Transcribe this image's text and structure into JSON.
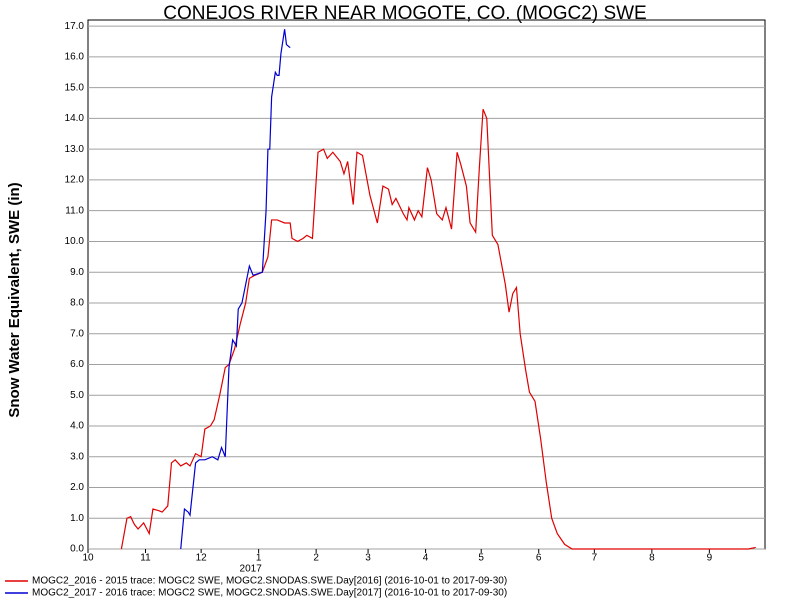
{
  "chart_data": {
    "type": "line",
    "title": "CONEJOS RIVER NEAR MOGOTE, CO. (MOGC2) SWE",
    "y_label": "Snow Water Equivalent, SWE (in)",
    "annotation": "2017",
    "xlim": [
      0,
      365
    ],
    "xticks": [
      {
        "value": 0,
        "label": "10"
      },
      {
        "value": 31,
        "label": "11"
      },
      {
        "value": 61,
        "label": "12"
      },
      {
        "value": 92,
        "label": "1"
      },
      {
        "value": 123,
        "label": "2"
      },
      {
        "value": 151,
        "label": "3"
      },
      {
        "value": 182,
        "label": "4"
      },
      {
        "value": 212,
        "label": "5"
      },
      {
        "value": 243,
        "label": "6"
      },
      {
        "value": 273,
        "label": "7"
      },
      {
        "value": 304,
        "label": "8"
      },
      {
        "value": 335,
        "label": "9"
      }
    ],
    "ylim": [
      0,
      17.2
    ],
    "yticks": [
      {
        "value": 0,
        "label": "0.0"
      },
      {
        "value": 1,
        "label": "1.0"
      },
      {
        "value": 2,
        "label": "2.0"
      },
      {
        "value": 3,
        "label": "3.0"
      },
      {
        "value": 4,
        "label": "4.0"
      },
      {
        "value": 5,
        "label": "5.0"
      },
      {
        "value": 6,
        "label": "6.0"
      },
      {
        "value": 7,
        "label": "7.0"
      },
      {
        "value": 8,
        "label": "8.0"
      },
      {
        "value": 9,
        "label": "9.0"
      },
      {
        "value": 10,
        "label": "10.0"
      },
      {
        "value": 11,
        "label": "11.0"
      },
      {
        "value": 12,
        "label": "12.0"
      },
      {
        "value": 13,
        "label": "13.0"
      },
      {
        "value": 14,
        "label": "14.0"
      },
      {
        "value": 15,
        "label": "15.0"
      },
      {
        "value": 16,
        "label": "16.0"
      },
      {
        "value": 17,
        "label": "17.0"
      }
    ],
    "grid": true,
    "series": [
      {
        "name": "MOGC2_2016 - 2015 trace: MOGC2 SWE, MOGC2.SNODAS.SWE.Day[2016] (2016-10-01 to 2017-09-30)",
        "color": "#e00000",
        "x": [
          18,
          21,
          23,
          25,
          27,
          30,
          33,
          35,
          38,
          40,
          43,
          45,
          47,
          50,
          53,
          55,
          58,
          61,
          63,
          66,
          68,
          71,
          74,
          76,
          79,
          82,
          85,
          87,
          90,
          94,
          97,
          99,
          102,
          106,
          109,
          110,
          113,
          116,
          118,
          121,
          124,
          127,
          129,
          132,
          136,
          138,
          140,
          143,
          145,
          148,
          152,
          156,
          159,
          162,
          164,
          166,
          170,
          172,
          173,
          176,
          178,
          180,
          183,
          185,
          188,
          191,
          193,
          196,
          199,
          201,
          204,
          206,
          209,
          211,
          213,
          215,
          218,
          221,
          225,
          227,
          229,
          231,
          233,
          236,
          238,
          241,
          244,
          247,
          250,
          253,
          257,
          261,
          264,
          356,
          360
        ],
        "values": [
          0,
          1.0,
          1.05,
          0.8,
          0.65,
          0.85,
          0.5,
          1.3,
          1.25,
          1.2,
          1.4,
          2.8,
          2.9,
          2.7,
          2.8,
          2.7,
          3.1,
          3.0,
          3.9,
          4.0,
          4.2,
          5.0,
          5.9,
          6.0,
          6.5,
          7.3,
          8.0,
          8.8,
          8.9,
          9.0,
          9.5,
          10.7,
          10.7,
          10.6,
          10.6,
          10.1,
          10.0,
          10.1,
          10.2,
          10.1,
          12.9,
          13.0,
          12.7,
          12.9,
          12.6,
          12.2,
          12.6,
          11.2,
          12.9,
          12.8,
          11.5,
          10.6,
          11.8,
          11.7,
          11.2,
          11.4,
          10.9,
          10.7,
          11.1,
          10.7,
          11.0,
          10.8,
          12.4,
          12.0,
          10.9,
          10.7,
          11.1,
          10.4,
          12.9,
          12.5,
          11.8,
          10.6,
          10.3,
          12.4,
          14.3,
          14.0,
          10.2,
          9.9,
          8.6,
          7.7,
          8.3,
          8.5,
          7.0,
          5.8,
          5.1,
          4.8,
          3.6,
          2.2,
          1.0,
          0.5,
          0.15,
          0,
          0,
          0,
          0.05
        ]
      },
      {
        "name": "MOGC2_2017 - 2016 trace: MOGC2 SWE, MOGC2.SNODAS.SWE.Day[2017] (2016-10-01 to 2017-09-30)",
        "color": "#0000d0",
        "x": [
          50,
          52,
          54,
          55,
          58,
          60,
          63,
          67,
          70,
          72,
          74,
          76,
          78,
          80,
          81,
          83,
          85,
          87,
          89,
          94,
          96,
          97,
          98,
          99,
          101,
          102,
          103,
          104,
          106,
          107,
          109
        ],
        "values": [
          0,
          1.3,
          1.2,
          1.1,
          2.8,
          2.9,
          2.9,
          3.0,
          2.9,
          3.3,
          3.0,
          5.9,
          6.8,
          6.6,
          7.8,
          8.0,
          8.6,
          9.2,
          8.9,
          9.0,
          11.0,
          13.0,
          13.0,
          14.7,
          15.5,
          15.4,
          15.4,
          16.1,
          16.9,
          16.4,
          16.3
        ]
      }
    ]
  }
}
